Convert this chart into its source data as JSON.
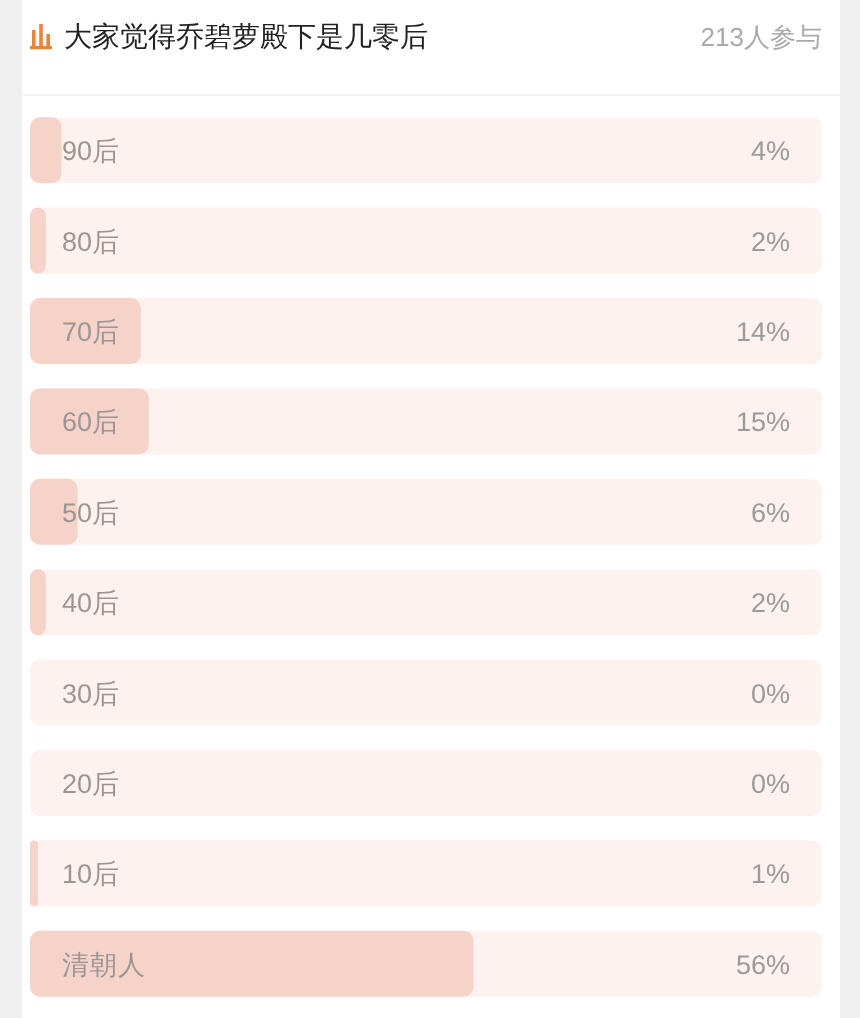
{
  "chart_data": {
    "type": "bar",
    "orientation": "horizontal",
    "title": "大家觉得乔碧萝殿下是几零后",
    "subtitle": "213人参与",
    "categories": [
      "90后",
      "80后",
      "70后",
      "60后",
      "50后",
      "40后",
      "30后",
      "20后",
      "10后",
      "清朝人"
    ],
    "values": [
      4,
      2,
      14,
      15,
      6,
      2,
      0,
      0,
      1,
      56
    ],
    "value_labels": [
      "4%",
      "2%",
      "14%",
      "15%",
      "6%",
      "2%",
      "0%",
      "0%",
      "1%",
      "56%"
    ],
    "color": "#f6d3c8",
    "xlim": [
      0,
      100
    ],
    "tick_labels": "y"
  }
}
